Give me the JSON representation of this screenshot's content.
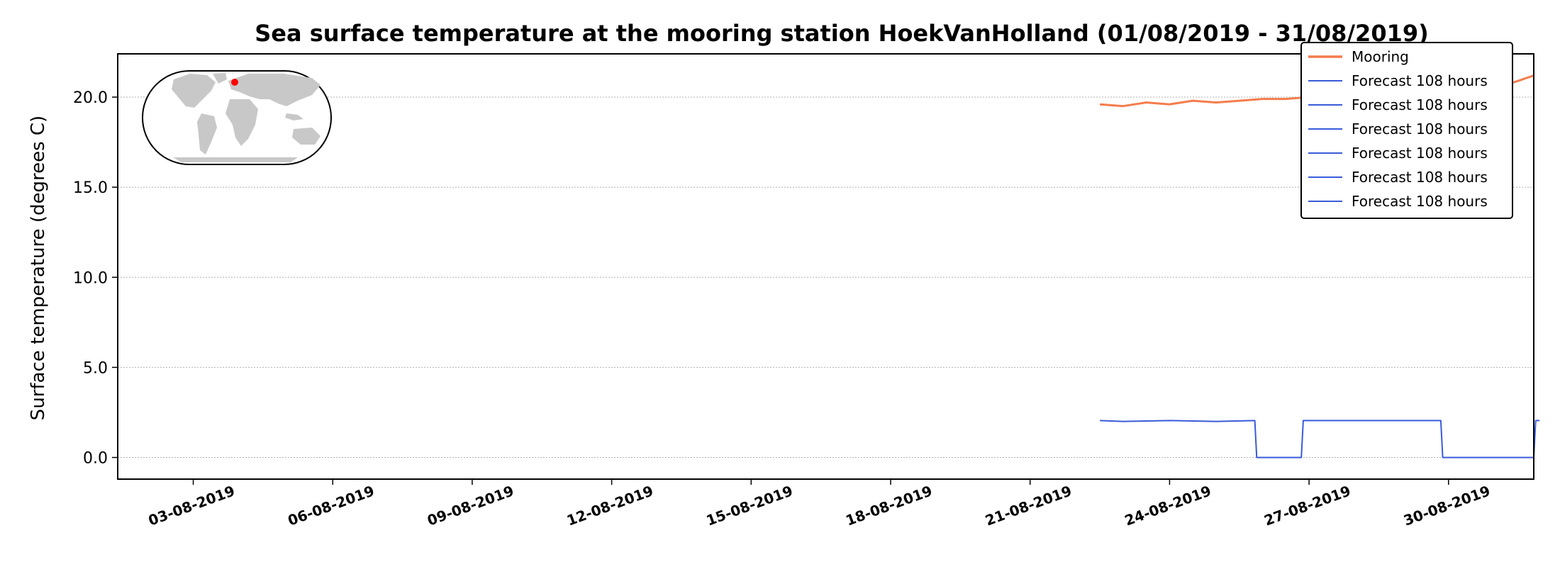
{
  "chart_data": {
    "type": "line",
    "title": "Sea surface temperature at the mooring station HoekVanHolland (01/08/2019 - 31/08/2019)",
    "ylabel": "Surface temperature (degrees C)",
    "xlabel": "",
    "x_range": [
      "2019-08-01T09:00",
      "2019-08-31T20:00"
    ],
    "ylim": [
      -1.2,
      22.4
    ],
    "x_ticks": [
      "03-08-2019",
      "06-08-2019",
      "09-08-2019",
      "12-08-2019",
      "15-08-2019",
      "18-08-2019",
      "21-08-2019",
      "24-08-2019",
      "27-08-2019",
      "30-08-2019"
    ],
    "y_ticks": [
      "0.0",
      "5.0",
      "10.0",
      "15.0",
      "20.0"
    ],
    "grid": "horizontal-dotted",
    "legend_position": "top-right",
    "inset_map": "world-map-with-red-station-dot",
    "series": [
      {
        "name": "Mooring",
        "color": "#f47c4c",
        "x": [
          "2019-08-22T12:00",
          "2019-08-23T00:00",
          "2019-08-23T12:00",
          "2019-08-24T00:00",
          "2019-08-24T12:00",
          "2019-08-25T00:00",
          "2019-08-25T12:00",
          "2019-08-26T00:00",
          "2019-08-26T12:00",
          "2019-08-27T00:00",
          "2019-08-27T12:00",
          "2019-08-28T00:00",
          "2019-08-28T12:00",
          "2019-08-29T00:00",
          "2019-08-29T12:00",
          "2019-08-30T00:00",
          "2019-08-30T12:00",
          "2019-08-31T00:00",
          "2019-08-31T12:00",
          "2019-08-31T20:00"
        ],
        "values": [
          19.6,
          19.5,
          19.7,
          19.6,
          19.8,
          19.7,
          19.8,
          19.9,
          19.9,
          20.0,
          20.0,
          20.1,
          20.1,
          20.2,
          20.3,
          20.3,
          20.4,
          20.5,
          20.9,
          21.2
        ]
      },
      {
        "name": "Forecast 108 hours",
        "color": "#3a5bd9",
        "x": [
          "2019-08-22T12:00",
          "2019-08-23T00:00",
          "2019-08-24T00:00",
          "2019-08-25T00:00",
          "2019-08-25T20:00",
          "2019-08-25T21:00",
          "2019-08-26T20:00",
          "2019-08-26T21:00",
          "2019-08-28T00:00",
          "2019-08-29T00:00",
          "2019-08-29T20:00",
          "2019-08-29T21:00",
          "2019-08-31T20:00",
          "2019-08-31T21:00",
          "2019-08-31T23:00"
        ],
        "values": [
          2.05,
          2.0,
          2.05,
          2.0,
          2.05,
          0.0,
          0.0,
          2.05,
          2.05,
          2.05,
          2.05,
          0.0,
          0.0,
          2.05,
          2.05
        ]
      }
    ],
    "legend_entries": [
      {
        "label": "Mooring",
        "color": "#f47c4c"
      },
      {
        "label": "Forecast 108 hours",
        "color": "#3a5bd9"
      },
      {
        "label": "Forecast 108 hours",
        "color": "#3a5bd9"
      },
      {
        "label": "Forecast 108 hours",
        "color": "#3a5bd9"
      },
      {
        "label": "Forecast 108 hours",
        "color": "#3a5bd9"
      },
      {
        "label": "Forecast 108 hours",
        "color": "#3a5bd9"
      },
      {
        "label": "Forecast 108 hours",
        "color": "#3a5bd9"
      }
    ]
  }
}
